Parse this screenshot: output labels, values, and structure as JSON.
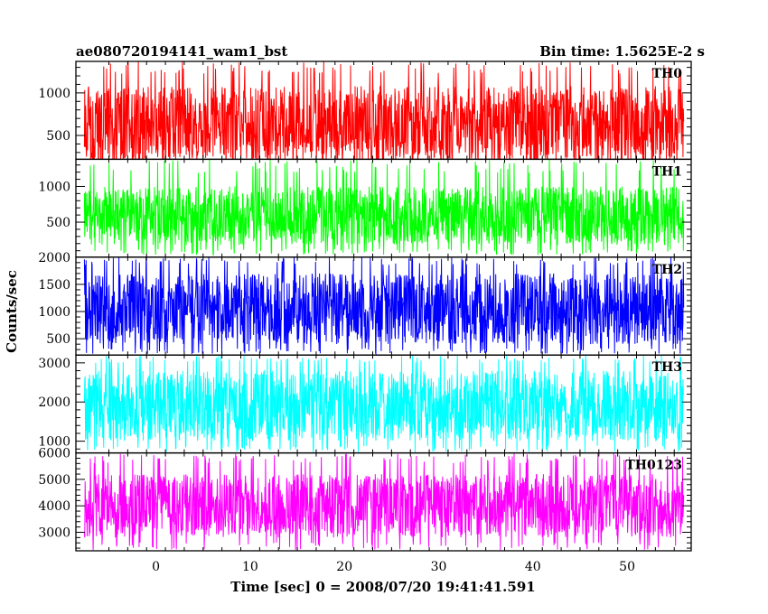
{
  "header": {
    "title": "ae080720194141_wam1_bst",
    "bin_time": "Bin time: 1.5625E-2 s"
  },
  "chart_data": {
    "type": "line",
    "xlabel": "Time [sec] 0 = 2008/07/20 19:41:41.591",
    "ylabel": "Counts/sec",
    "xlim": [
      -8.5,
      56.8
    ],
    "x_data_range": [
      -7.6,
      56.0
    ],
    "x_ticks": [
      0,
      10,
      20,
      30,
      40,
      50
    ],
    "grid": false,
    "legend": "none",
    "panels": [
      {
        "name": "TH0",
        "color": "#ff0000",
        "ylim": [
          220,
          1370
        ],
        "y_ticks": [
          500,
          1000
        ],
        "baseline_low": 200,
        "baseline_high": 1080,
        "spike_min": 40,
        "spike_max": 1370
      },
      {
        "name": "TH1",
        "color": "#00ff00",
        "ylim": [
          10,
          1380
        ],
        "y_ticks": [
          500,
          1000
        ],
        "baseline_low": 180,
        "baseline_high": 1000,
        "spike_min": 40,
        "spike_max": 1380
      },
      {
        "name": "TH2",
        "color": "#0000ff",
        "ylim": [
          200,
          2000
        ],
        "y_ticks": [
          500,
          1000,
          1500,
          2000
        ],
        "baseline_low": 400,
        "baseline_high": 1700,
        "spike_min": 220,
        "spike_max": 2000
      },
      {
        "name": "TH3",
        "color": "#00ffff",
        "ylim": [
          700,
          3200
        ],
        "y_ticks": [
          1000,
          2000,
          3000
        ],
        "baseline_low": 1000,
        "baseline_high": 2800,
        "spike_min": 720,
        "spike_max": 3200
      },
      {
        "name": "TH0123",
        "color": "#ff00ff",
        "ylim": [
          2300,
          6000
        ],
        "y_ticks": [
          3000,
          4000,
          5000,
          6000
        ],
        "baseline_low": 2800,
        "baseline_high": 5200,
        "spike_min": 2330,
        "spike_max": 6000
      }
    ]
  }
}
